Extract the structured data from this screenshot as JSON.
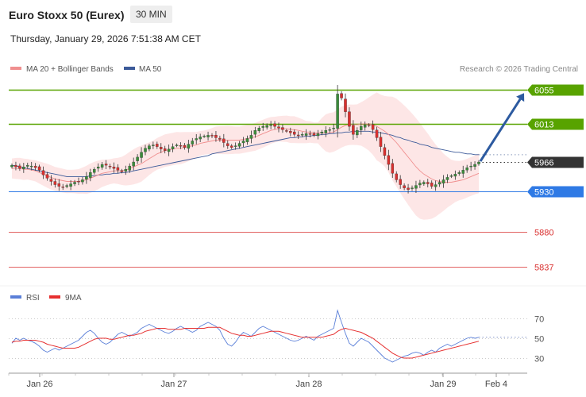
{
  "header": {
    "title": "Euro Stoxx 50 (Eurex)",
    "timeframe": "30 MIN",
    "datetime": "Thursday, January 29, 2026 7:51:38 AM CET"
  },
  "legend": {
    "ma20": "MA 20 + Bollinger Bands",
    "ma50": "MA 50",
    "credit": "Research © 2026 Trading Central"
  },
  "colors": {
    "resistance": "#58a300",
    "support": "#2f7ae5",
    "pivot": "#333333",
    "target_red": "#d9302f",
    "ma20": "#f08f8f",
    "ma50": "#3c5a99",
    "bollinger": "#fde2e2",
    "candle_up": "#3a8d3a",
    "candle_down": "#d9302f",
    "arrow": "#2c5aa0",
    "rsi": "#5a7fd8",
    "rsi_ma": "#e63030"
  },
  "chart_data": [
    {
      "type": "candlestick",
      "ylim": [
        5815,
        6068
      ],
      "x_labels": [
        "Jan 26",
        "Jan 27",
        "Jan 28",
        "Jan 29",
        "Feb 4"
      ],
      "levels": [
        {
          "value": 6055,
          "label": "6055",
          "kind": "resistance"
        },
        {
          "value": 6013,
          "label": "6013",
          "kind": "resistance"
        },
        {
          "value": 5966,
          "label": "5966",
          "kind": "pivot"
        },
        {
          "value": 5930,
          "label": "5930",
          "kind": "support"
        },
        {
          "value": 5880,
          "label": "5880",
          "kind": "target"
        },
        {
          "value": 5837,
          "label": "5837",
          "kind": "target"
        }
      ],
      "projection": {
        "from": 5966,
        "to": 6055
      },
      "close_series": [
        5962,
        5960,
        5958,
        5960,
        5962,
        5961,
        5959,
        5956,
        5950,
        5946,
        5942,
        5938,
        5936,
        5935,
        5937,
        5939,
        5941,
        5942,
        5944,
        5948,
        5953,
        5957,
        5960,
        5963,
        5962,
        5960,
        5958,
        5956,
        5954,
        5957,
        5961,
        5966,
        5972,
        5978,
        5983,
        5986,
        5987,
        5985,
        5982,
        5980,
        5982,
        5985,
        5987,
        5986,
        5984,
        5988,
        5992,
        5995,
        5997,
        5998,
        5999,
        5998,
        5996,
        5994,
        5990,
        5986,
        5984,
        5986,
        5989,
        5992,
        5995,
        5999,
        6005,
        6008,
        6010,
        6011,
        6012,
        6010,
        6008,
        6006,
        6004,
        6002,
        6000,
        5999,
        6000,
        6001,
        6000,
        5999,
        6001,
        6003,
        6005,
        6006,
        6008,
        6050,
        6045,
        6028,
        6010,
        6000,
        6005,
        6010,
        6012,
        6011,
        6006,
        5996,
        5985,
        5974,
        5963,
        5952,
        5944,
        5938,
        5934,
        5932,
        5934,
        5937,
        5940,
        5941,
        5939,
        5936,
        5938,
        5941,
        5944,
        5947,
        5949,
        5951,
        5953,
        5956,
        5959,
        5961,
        5963,
        5966
      ],
      "ma20_series": [
        5958,
        5958,
        5958,
        5957,
        5957,
        5956,
        5955,
        5953,
        5951,
        5949,
        5947,
        5945,
        5944,
        5943,
        5942,
        5942,
        5942,
        5942,
        5943,
        5944,
        5946,
        5948,
        5950,
        5952,
        5953,
        5954,
        5955,
        5955,
        5955,
        5956,
        5958,
        5960,
        5962,
        5964,
        5967,
        5970,
        5973,
        5976,
        5978,
        5980,
        5981,
        5982,
        5983,
        5983,
        5984,
        5985,
        5986,
        5987,
        5989,
        5990,
        5991,
        5992,
        5993,
        5993,
        5993,
        5993,
        5993,
        5993,
        5993,
        5994,
        5995,
        5996,
        5997,
        5999,
        6001,
        6003,
        6005,
        6006,
        6007,
        6007,
        6007,
        6006,
        6006,
        6005,
        6004,
        6003,
        6003,
        6002,
        6002,
        6002,
        6002,
        6002,
        6003,
        6006,
        6009,
        6011,
        6012,
        6012,
        6012,
        6013,
        6013,
        6013,
        6012,
        6010,
        6007,
        6004,
        6000,
        5995,
        5990,
        5984,
        5978,
        5972,
        5966,
        5960,
        5955,
        5951,
        5948,
        5945,
        5943,
        5942,
        5941,
        5941,
        5941,
        5942,
        5943,
        5944,
        5946,
        5948,
        5950,
        5952
      ],
      "ma50_series": [
        5962,
        5961,
        5960,
        5959,
        5958,
        5957,
        5956,
        5955,
        5954,
        5953,
        5952,
        5951,
        5950,
        5949,
        5948,
        5948,
        5948,
        5948,
        5948,
        5948,
        5949,
        5949,
        5950,
        5950,
        5951,
        5951,
        5952,
        5952,
        5953,
        5953,
        5954,
        5955,
        5956,
        5957,
        5958,
        5959,
        5960,
        5961,
        5962,
        5963,
        5964,
        5965,
        5966,
        5967,
        5968,
        5969,
        5970,
        5971,
        5972,
        5973,
        5974,
        5976,
        5977,
        5978,
        5979,
        5980,
        5981,
        5982,
        5983,
        5984,
        5985,
        5986,
        5987,
        5988,
        5989,
        5990,
        5991,
        5992,
        5993,
        5994,
        5995,
        5996,
        5996,
        5997,
        5997,
        5998,
        5998,
        5999,
        5999,
        6000,
        6000,
        6001,
        6001,
        6002,
        6002,
        6003,
        6003,
        6004,
        6004,
        6004,
        6004,
        6004,
        6003,
        6003,
        6002,
        6001,
        6000,
        5999,
        5997,
        5996,
        5994,
        5993,
        5991,
        5990,
        5988,
        5987,
        5986,
        5984,
        5983,
        5982,
        5981,
        5980,
        5979,
        5978,
        5978,
        5977,
        5976,
        5976,
        5975,
        5975
      ]
    },
    {
      "type": "line",
      "ylim": [
        18,
        82
      ],
      "ticks": [
        70,
        50,
        30
      ],
      "series": [
        {
          "name": "RSI",
          "values": [
            45,
            50,
            48,
            50,
            48,
            47,
            45,
            42,
            38,
            36,
            38,
            40,
            38,
            40,
            42,
            44,
            46,
            48,
            52,
            56,
            58,
            55,
            50,
            46,
            44,
            46,
            50,
            54,
            56,
            54,
            52,
            54,
            56,
            60,
            62,
            64,
            62,
            60,
            58,
            56,
            55,
            57,
            60,
            62,
            60,
            58,
            56,
            58,
            62,
            64,
            66,
            64,
            62,
            58,
            50,
            44,
            42,
            46,
            52,
            56,
            54,
            52,
            56,
            60,
            62,
            60,
            58,
            56,
            54,
            52,
            50,
            48,
            47,
            48,
            50,
            52,
            50,
            48,
            52,
            54,
            56,
            58,
            60,
            78,
            66,
            55,
            45,
            42,
            46,
            50,
            48,
            46,
            42,
            38,
            34,
            30,
            28,
            26,
            28,
            30,
            32,
            33,
            35,
            36,
            35,
            33,
            36,
            38,
            36,
            40,
            42,
            44,
            42,
            44,
            46,
            48,
            50,
            51,
            50,
            51
          ]
        },
        {
          "name": "9MA",
          "values": [
            46,
            47,
            47,
            48,
            48,
            48,
            48,
            47,
            46,
            44,
            43,
            42,
            41,
            40,
            40,
            40,
            40,
            41,
            43,
            45,
            47,
            49,
            50,
            50,
            50,
            49,
            49,
            50,
            51,
            52,
            53,
            53,
            54,
            55,
            57,
            58,
            59,
            60,
            60,
            60,
            59,
            59,
            59,
            59,
            60,
            60,
            60,
            60,
            60,
            60,
            61,
            61,
            61,
            61,
            59,
            57,
            55,
            54,
            53,
            53,
            52,
            52,
            53,
            54,
            55,
            56,
            57,
            57,
            57,
            56,
            55,
            54,
            53,
            52,
            51,
            51,
            51,
            51,
            51,
            51,
            52,
            53,
            54,
            57,
            59,
            60,
            59,
            58,
            57,
            56,
            54,
            52,
            50,
            47,
            44,
            41,
            38,
            35,
            33,
            31,
            30,
            30,
            30,
            31,
            32,
            33,
            34,
            35,
            36,
            37,
            38,
            39,
            40,
            41,
            42,
            43,
            44,
            45,
            46,
            47
          ]
        }
      ]
    }
  ]
}
